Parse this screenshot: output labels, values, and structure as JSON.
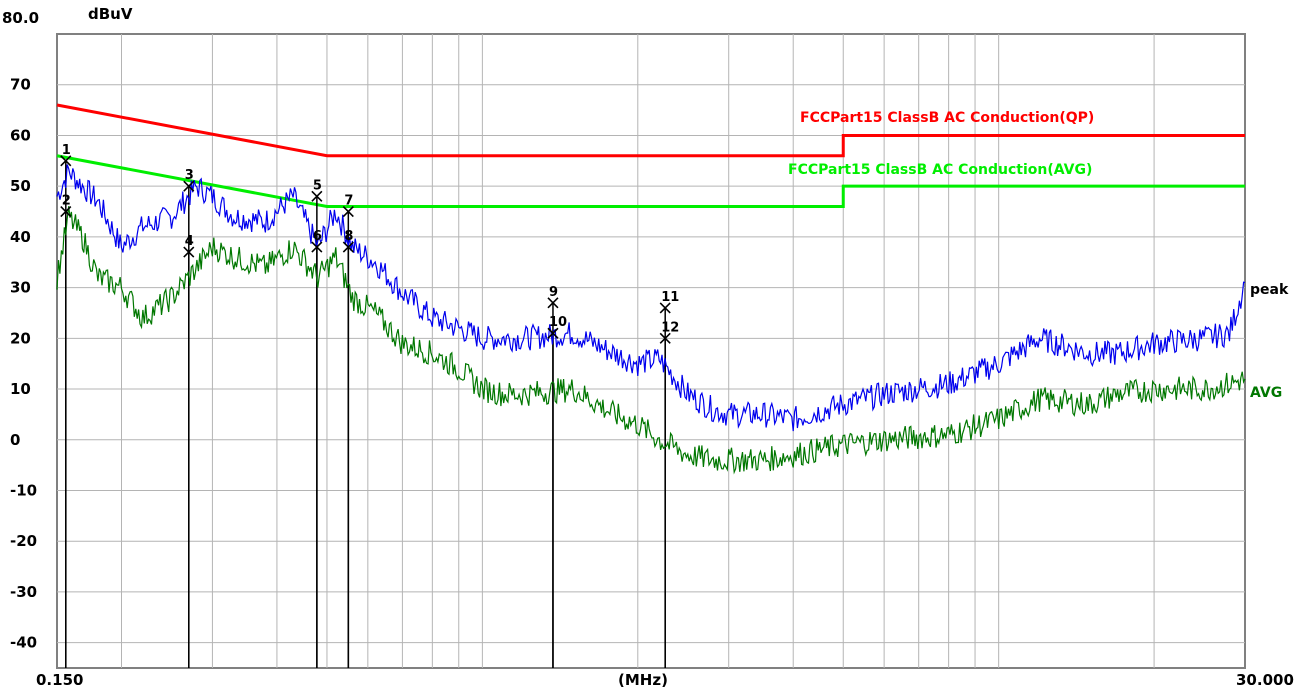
{
  "chart_data": {
    "type": "line",
    "x_scale": "log",
    "xlim": [
      0.15,
      30.0
    ],
    "ylim": [
      -45,
      80
    ],
    "grid": true,
    "ylabel": "dBuV",
    "xlabel": "(MHz)",
    "y_top_label": "80.0",
    "x_min_label": "0.150",
    "x_max_label": "30.000",
    "y_ticks": [
      70,
      60,
      50,
      40,
      30,
      20,
      10,
      0,
      -10,
      -20,
      -30,
      -40
    ],
    "x_gridlines": [
      0.2,
      0.3,
      0.4,
      0.5,
      0.6,
      0.7,
      0.8,
      0.9,
      1,
      2,
      3,
      4,
      5,
      6,
      7,
      8,
      9,
      10,
      20
    ],
    "limit_lines": [
      {
        "name": "FCCPart15 ClassB AC Conduction(QP)",
        "color": "#ff0000",
        "points": [
          [
            0.15,
            66
          ],
          [
            0.5,
            56
          ],
          [
            5,
            56
          ],
          [
            5,
            60
          ],
          [
            30,
            60
          ]
        ]
      },
      {
        "name": "FCCPart15 ClassB AC Conduction(AVG)",
        "color": "#00ee00",
        "points": [
          [
            0.15,
            56
          ],
          [
            0.5,
            46
          ],
          [
            5,
            46
          ],
          [
            5,
            50
          ],
          [
            30,
            50
          ]
        ]
      }
    ],
    "series": [
      {
        "name": "peak",
        "color": "#0000ee",
        "x": [
          0.15,
          0.158,
          0.168,
          0.18,
          0.2,
          0.22,
          0.25,
          0.28,
          0.3,
          0.33,
          0.38,
          0.43,
          0.48,
          0.52,
          0.56,
          0.62,
          0.7,
          0.8,
          0.9,
          1.0,
          1.1,
          1.2,
          1.5,
          1.8,
          2.0,
          2.2,
          2.5,
          2.8,
          3.0,
          3.5,
          4.0,
          5.0,
          6.0,
          8.0,
          10.0,
          12.0,
          15.0,
          17.0,
          20.0,
          25.0,
          28.0,
          30.0
        ],
        "y": [
          48,
          53,
          50,
          47,
          38,
          42,
          44,
          50,
          48,
          44,
          43,
          48,
          38,
          45,
          38,
          35,
          29,
          24,
          22,
          20,
          20,
          20,
          21,
          17,
          15,
          16,
          9,
          6,
          5,
          5,
          4,
          7,
          9,
          11,
          15,
          20,
          17,
          17,
          19,
          20,
          21,
          31
        ]
      },
      {
        "name": "AVG",
        "color": "#007700",
        "x": [
          0.15,
          0.158,
          0.168,
          0.18,
          0.2,
          0.22,
          0.25,
          0.28,
          0.3,
          0.33,
          0.38,
          0.43,
          0.48,
          0.52,
          0.56,
          0.62,
          0.7,
          0.8,
          0.9,
          1.0,
          1.1,
          1.2,
          1.5,
          1.8,
          2.0,
          2.2,
          2.5,
          2.8,
          3.0,
          3.5,
          4.0,
          5.0,
          6.0,
          8.0,
          10.0,
          12.0,
          15.0,
          17.0,
          20.0,
          25.0,
          28.0,
          30.0
        ],
        "y": [
          32,
          44,
          40,
          32,
          30,
          24,
          28,
          34,
          38,
          36,
          34,
          38,
          32,
          36,
          28,
          25,
          19,
          17,
          14,
          10,
          9,
          9,
          10,
          5,
          3,
          0,
          -3,
          -4,
          -4,
          -4,
          -3,
          -1,
          0,
          1,
          4,
          8,
          7,
          9,
          10,
          10,
          11,
          12
        ]
      }
    ],
    "markers": [
      {
        "label": "1",
        "x": 0.156,
        "y": 55
      },
      {
        "label": "2",
        "x": 0.156,
        "y": 45
      },
      {
        "label": "3",
        "x": 0.27,
        "y": 50
      },
      {
        "label": "4",
        "x": 0.27,
        "y": 37
      },
      {
        "label": "5",
        "x": 0.478,
        "y": 48
      },
      {
        "label": "6",
        "x": 0.478,
        "y": 38
      },
      {
        "label": "7",
        "x": 0.55,
        "y": 45
      },
      {
        "label": "8",
        "x": 0.55,
        "y": 38
      },
      {
        "label": "9",
        "x": 1.37,
        "y": 27
      },
      {
        "label": "10",
        "x": 1.37,
        "y": 21
      },
      {
        "label": "11",
        "x": 2.26,
        "y": 26
      },
      {
        "label": "12",
        "x": 2.26,
        "y": 20
      }
    ]
  }
}
